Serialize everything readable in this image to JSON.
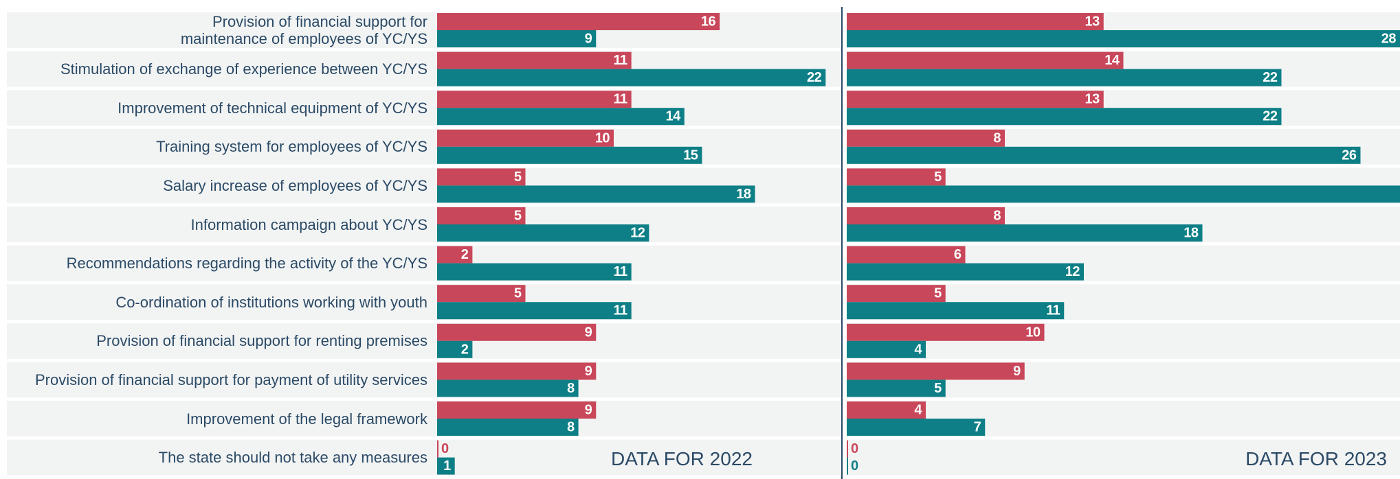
{
  "chart_data": [
    {
      "type": "bar",
      "orientation": "horizontal",
      "title": "DATA FOR 2022",
      "categories": [
        "Provision of financial support for\nmaintenance of employees of YC/YS",
        "Stimulation of exchange of experience between YC/YS",
        "Improvement of technical equipment of YC/YS",
        "Training system for employees of YC/YS",
        "Salary increase of employees of YC/YS",
        "Information campaign about YC/YS",
        "Recommendations regarding the activity of the YC/YS",
        "Co-ordination of institutions working with youth",
        "Provision of financial support for renting premises",
        "Provision of financial support for payment of utility services",
        "Improvement of the legal framework",
        "The state should not take any measures"
      ],
      "series": [
        {
          "color": "#c9475a",
          "values": [
            16,
            11,
            11,
            10,
            5,
            5,
            2,
            5,
            9,
            9,
            9,
            0
          ]
        },
        {
          "color": "#0e7f86",
          "values": [
            9,
            22,
            14,
            15,
            18,
            12,
            11,
            11,
            2,
            8,
            8,
            1
          ]
        }
      ],
      "xlim": [
        0,
        23
      ]
    },
    {
      "type": "bar",
      "orientation": "horizontal",
      "title": "DATA FOR 2023",
      "series": [
        {
          "color": "#c9475a",
          "values": [
            13,
            14,
            13,
            8,
            5,
            8,
            6,
            5,
            10,
            9,
            4,
            0
          ]
        },
        {
          "color": "#0e7f86",
          "values": [
            28,
            22,
            22,
            26,
            29,
            18,
            12,
            11,
            4,
            5,
            7,
            0
          ]
        }
      ],
      "xlim": [
        0,
        28
      ]
    }
  ]
}
